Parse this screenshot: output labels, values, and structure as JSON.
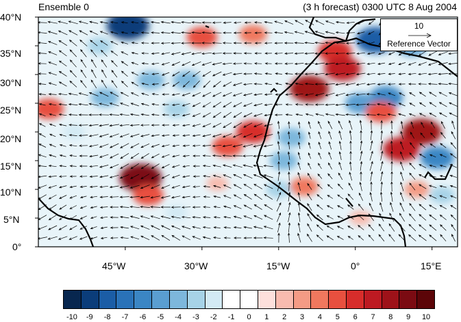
{
  "title_left": "Ensemble 0",
  "title_right": "(3 h forecast) 0300 UTC 8 Aug 2004",
  "reference_vector": {
    "magnitude": "10",
    "label": "Reference Vector"
  },
  "map": {
    "lon_range": [
      -62,
      20
    ],
    "lat_range": [
      0,
      40
    ],
    "lat_labels": [
      "0°",
      "5°N",
      "10°N",
      "15°N",
      "20°N",
      "25°N",
      "30°N",
      "35°N",
      "40°N"
    ],
    "lon_labels": [
      "45°W",
      "30°W",
      "15°W",
      "0°",
      "15°E"
    ],
    "lat_values": [
      0,
      5,
      10,
      15,
      20,
      25,
      30,
      35,
      40
    ],
    "lon_values": [
      -45,
      -30,
      -15,
      0,
      15
    ]
  },
  "colorbar": {
    "labels": [
      "-10",
      "-9",
      "-8",
      "-7",
      "-6",
      "-5",
      "-4",
      "-3",
      "-2",
      "-1",
      "0",
      "1",
      "2",
      "3",
      "4",
      "5",
      "6",
      "7",
      "8",
      "9",
      "10"
    ],
    "colors": [
      "#08274f",
      "#0b3d7a",
      "#1b5da6",
      "#2a72b8",
      "#3b86c4",
      "#5a9ed1",
      "#7db7dc",
      "#a7d3e7",
      "#d3eaf4",
      "#ffffff",
      "#ffffff",
      "#fde0dc",
      "#f8bbaf",
      "#f49b85",
      "#f0785e",
      "#e8503f",
      "#d72d2b",
      "#bd1a22",
      "#9e1219",
      "#7b0b12",
      "#5c0508"
    ]
  },
  "anomalies": [
    {
      "lon": -44.5,
      "lat": 38.5,
      "value": -9
    },
    {
      "lon": -30,
      "lat": 36.5,
      "value": 5
    },
    {
      "lon": -20,
      "lat": 37,
      "value": 4
    },
    {
      "lon": -4,
      "lat": 34,
      "value": 6
    },
    {
      "lon": -2.5,
      "lat": 31,
      "value": 7
    },
    {
      "lon": 4,
      "lat": 36,
      "value": -8
    },
    {
      "lon": 6,
      "lat": 26,
      "value": -6
    },
    {
      "lon": 11,
      "lat": 35,
      "value": -5
    },
    {
      "lon": -9,
      "lat": 27.5,
      "value": 8
    },
    {
      "lon": 1,
      "lat": 25,
      "value": -5
    },
    {
      "lon": 5,
      "lat": 23.5,
      "value": 5
    },
    {
      "lon": 13,
      "lat": 20,
      "value": 8
    },
    {
      "lon": 9,
      "lat": 17,
      "value": 7
    },
    {
      "lon": 16,
      "lat": 15.5,
      "value": -6
    },
    {
      "lon": -20,
      "lat": 20,
      "value": 6
    },
    {
      "lon": -25,
      "lat": 17.5,
      "value": 5
    },
    {
      "lon": -12.5,
      "lat": 19,
      "value": -4
    },
    {
      "lon": -14,
      "lat": 15,
      "value": -4
    },
    {
      "lon": -42,
      "lat": 12,
      "value": 9
    },
    {
      "lon": -40.5,
      "lat": 9,
      "value": 5
    },
    {
      "lon": -60,
      "lat": 24,
      "value": 5
    },
    {
      "lon": -49,
      "lat": 26,
      "value": -4
    },
    {
      "lon": -40,
      "lat": 29,
      "value": -4
    },
    {
      "lon": -33,
      "lat": 29,
      "value": -4
    },
    {
      "lon": -35,
      "lat": 24,
      "value": -3
    },
    {
      "lon": -15,
      "lat": 10,
      "value": -3
    },
    {
      "lon": -10,
      "lat": 10.5,
      "value": 4
    },
    {
      "lon": -27,
      "lat": 11,
      "value": 2
    },
    {
      "lon": 12,
      "lat": 10,
      "value": 3
    },
    {
      "lon": 17,
      "lat": 9,
      "value": -3
    },
    {
      "lon": -55,
      "lat": 20,
      "value": -2
    },
    {
      "lon": -50,
      "lat": 35,
      "value": -3
    },
    {
      "lon": 1,
      "lat": 5,
      "value": 2
    },
    {
      "lon": -35,
      "lat": 6,
      "value": -2
    }
  ]
}
